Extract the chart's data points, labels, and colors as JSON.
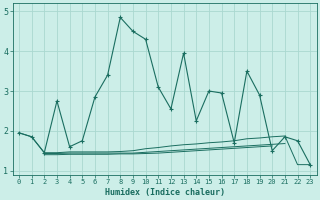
{
  "xlabel": "Humidex (Indice chaleur)",
  "background_color": "#cceee8",
  "grid_color": "#aad8d0",
  "line_color": "#1a6e60",
  "xlim": [
    -0.5,
    23.5
  ],
  "ylim": [
    0.9,
    5.2
  ],
  "yticks": [
    1,
    2,
    3,
    4,
    5
  ],
  "xticks": [
    0,
    1,
    2,
    3,
    4,
    5,
    6,
    7,
    8,
    9,
    10,
    11,
    12,
    13,
    14,
    15,
    16,
    17,
    18,
    19,
    20,
    21,
    22,
    23
  ],
  "series1_x": [
    0,
    1,
    2,
    3,
    4,
    5,
    6,
    7,
    8,
    9,
    10,
    11,
    12,
    13,
    14,
    15,
    16,
    17,
    18,
    19,
    20,
    21,
    22,
    23
  ],
  "series1_y": [
    1.95,
    1.85,
    1.45,
    2.75,
    1.6,
    1.75,
    2.85,
    3.4,
    4.85,
    4.5,
    4.3,
    3.1,
    2.55,
    3.95,
    2.25,
    3.0,
    2.95,
    1.7,
    3.5,
    2.9,
    1.5,
    1.85,
    1.75,
    1.15
  ],
  "series2_x": [
    0,
    1,
    2,
    3,
    4,
    5,
    6,
    7,
    8,
    9,
    10,
    11,
    12,
    13,
    14,
    15,
    16,
    17,
    18,
    19,
    20,
    21,
    22,
    23
  ],
  "series2_y": [
    1.95,
    1.85,
    1.45,
    1.45,
    1.47,
    1.47,
    1.47,
    1.47,
    1.48,
    1.5,
    1.55,
    1.58,
    1.62,
    1.65,
    1.67,
    1.7,
    1.72,
    1.75,
    1.8,
    1.82,
    1.85,
    1.87,
    1.15,
    1.15
  ],
  "series3_x": [
    2,
    3,
    4,
    5,
    6,
    7,
    8,
    9,
    10,
    11,
    12,
    13,
    14,
    15,
    16,
    17,
    18,
    19,
    20,
    21
  ],
  "series3_y": [
    1.43,
    1.43,
    1.44,
    1.44,
    1.44,
    1.44,
    1.44,
    1.44,
    1.46,
    1.48,
    1.5,
    1.52,
    1.54,
    1.56,
    1.58,
    1.6,
    1.62,
    1.64,
    1.66,
    1.68
  ],
  "series4_x": [
    2,
    3,
    4,
    5,
    6,
    7,
    8,
    9,
    10,
    11,
    12,
    13,
    14,
    15,
    16,
    17,
    18,
    19,
    20
  ],
  "series4_y": [
    1.4,
    1.4,
    1.41,
    1.41,
    1.41,
    1.41,
    1.42,
    1.42,
    1.43,
    1.44,
    1.46,
    1.48,
    1.5,
    1.52,
    1.54,
    1.56,
    1.58,
    1.6,
    1.62
  ]
}
